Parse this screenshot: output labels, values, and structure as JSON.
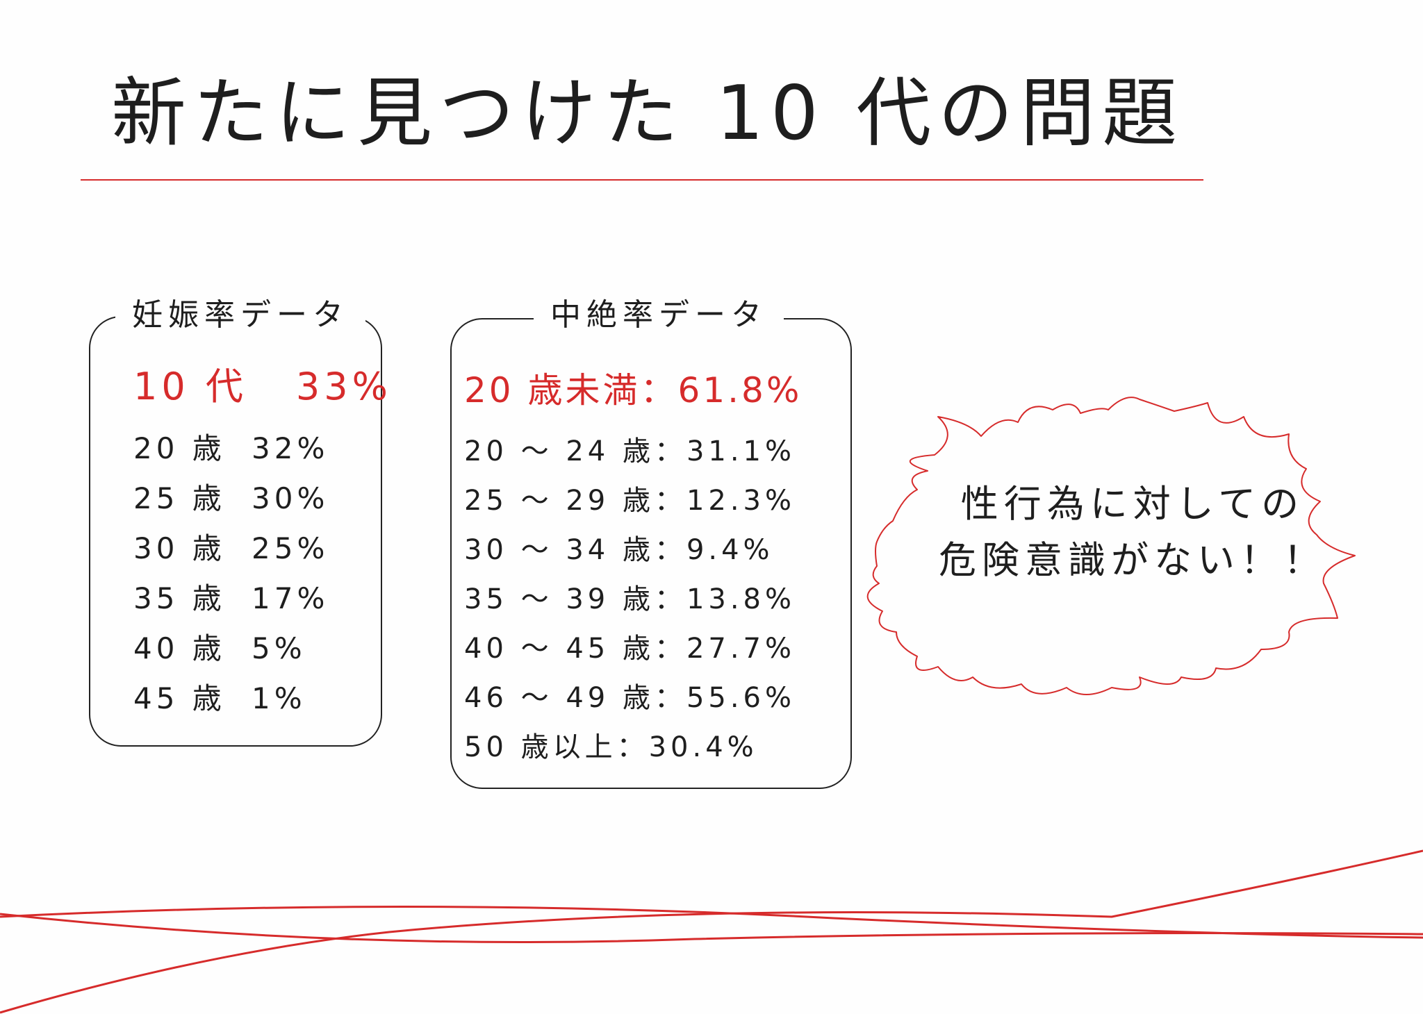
{
  "title": "新たに見つけた 10 代の問題",
  "pregnancy": {
    "label": "妊娠率データ",
    "highlight": {
      "age": "10 代",
      "value": "33%"
    },
    "rows": [
      {
        "age": "20 歳",
        "value": "32%"
      },
      {
        "age": "25 歳",
        "value": "30%"
      },
      {
        "age": "30 歳",
        "value": "25%"
      },
      {
        "age": "35 歳",
        "value": "17%"
      },
      {
        "age": "40 歳",
        "value": "5%"
      },
      {
        "age": "45 歳",
        "value": "1%"
      }
    ]
  },
  "abortion": {
    "label": "中絶率データ",
    "highlight": "20 歳未満：61.8%",
    "rows": [
      "20 ～ 24 歳：31.1%",
      "25 ～ 29 歳：12.3%",
      "30 ～ 34 歳：9.4%",
      "35 ～ 39 歳：13.8%",
      "40 ～ 45 歳：27.7%",
      "46 ～ 49 歳：55.6%",
      "50 歳以上：30.4%"
    ]
  },
  "callout": {
    "line1": "性行為に対しての",
    "line2": "危険意識がない！！"
  },
  "colors": {
    "accent": "#d62b2b",
    "ink": "#1e1e1e",
    "background": "#fefefe"
  }
}
